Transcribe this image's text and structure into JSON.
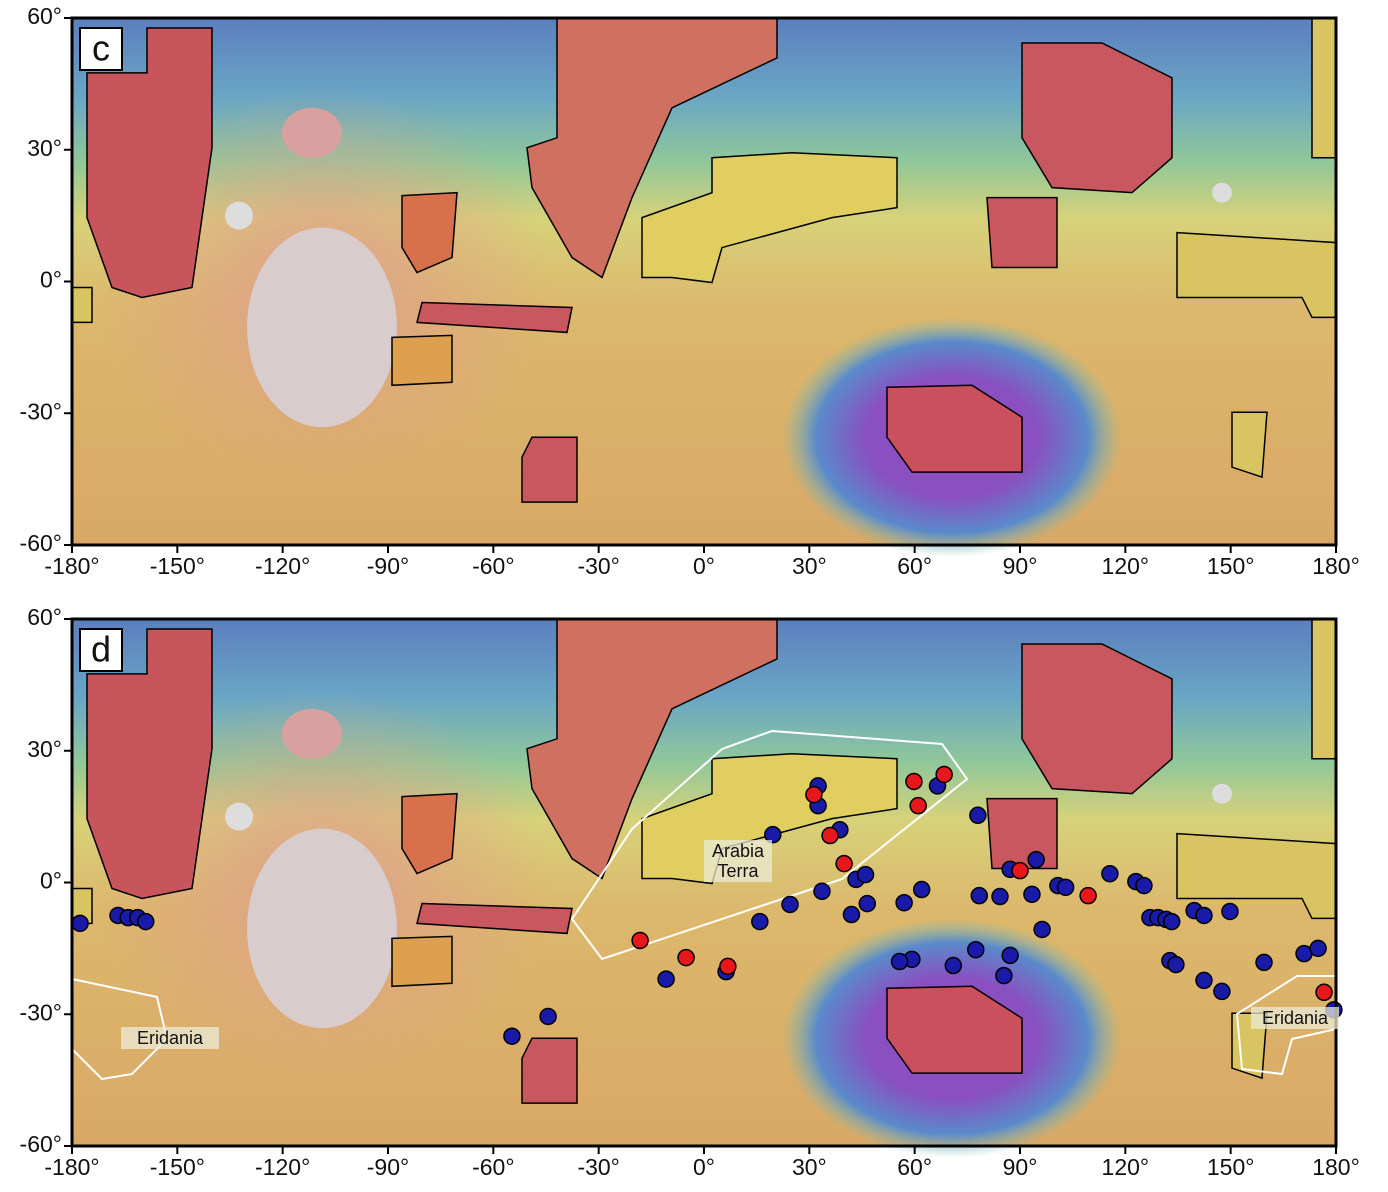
{
  "panels": [
    {
      "label": "c",
      "xlim": [
        -180,
        180
      ],
      "ylim": [
        -60,
        60
      ],
      "xticks": [
        {
          "value": -180,
          "label": "-180°"
        },
        {
          "value": -150,
          "label": "-150°"
        },
        {
          "value": -120,
          "label": "-120°"
        },
        {
          "value": -90,
          "label": "-90°"
        },
        {
          "value": -60,
          "label": "-60°"
        },
        {
          "value": -30,
          "label": "-30°"
        },
        {
          "value": 0,
          "label": "0°"
        },
        {
          "value": 30,
          "label": "30°"
        },
        {
          "value": 60,
          "label": "60°"
        },
        {
          "value": 90,
          "label": "90°"
        },
        {
          "value": 120,
          "label": "120°"
        },
        {
          "value": 150,
          "label": "150°"
        },
        {
          "value": 180,
          "label": "180°"
        }
      ],
      "yticks": [
        {
          "value": 60,
          "label": "60°"
        },
        {
          "value": 30,
          "label": "30°"
        },
        {
          "value": 0,
          "label": "0°"
        },
        {
          "value": -30,
          "label": "-30°"
        },
        {
          "value": -60,
          "label": "-60°"
        }
      ]
    },
    {
      "label": "d",
      "xlim": [
        -180,
        180
      ],
      "ylim": [
        -60,
        60
      ],
      "xticks": [
        {
          "value": -180,
          "label": "-180°"
        },
        {
          "value": -150,
          "label": "-150°"
        },
        {
          "value": -120,
          "label": "-120°"
        },
        {
          "value": -90,
          "label": "-90°"
        },
        {
          "value": -60,
          "label": "-60°"
        },
        {
          "value": -30,
          "label": "-30°"
        },
        {
          "value": 0,
          "label": "0°"
        },
        {
          "value": 30,
          "label": "30°"
        },
        {
          "value": 60,
          "label": "60°"
        },
        {
          "value": 90,
          "label": "90°"
        },
        {
          "value": 120,
          "label": "120°"
        },
        {
          "value": 150,
          "label": "150°"
        },
        {
          "value": 180,
          "label": "180°"
        }
      ],
      "yticks": [
        {
          "value": 60,
          "label": "60°"
        },
        {
          "value": 30,
          "label": "30°"
        },
        {
          "value": 0,
          "label": "0°"
        },
        {
          "value": -30,
          "label": "-30°"
        },
        {
          "value": -60,
          "label": "-60°"
        }
      ],
      "annotations": [
        "Arabia Terra",
        "Eridania",
        "Eridania"
      ],
      "series": [
        {
          "color": "#1a1aa8",
          "x": [
            -177.7,
            -166.9,
            -164,
            -161.3,
            -159,
            -54.7,
            -44.4,
            -10.8,
            6.3,
            15.9,
            19.6,
            24.5,
            32.5,
            32.5,
            33.6,
            38.7,
            42,
            43.3,
            46,
            46.5,
            57,
            59.2,
            55.7,
            62,
            66.5,
            71,
            78,
            78.4,
            77.4,
            84.3,
            85.4,
            87.2,
            87.2,
            93.4,
            94.6,
            96.3,
            100.8,
            103,
            115.6,
            123,
            125.3,
            127,
            129.3,
            131.6,
            133.2,
            132.7,
            134.4,
            139.6,
            142.4,
            142.4,
            147.5,
            149.8,
            159.5,
            170.9,
            174.9,
            179.4
          ],
          "y": [
            -9.3,
            -7.5,
            -8,
            -8,
            -8.9,
            -35,
            -30.5,
            -22,
            -20.3,
            -8.9,
            10.9,
            -5,
            22,
            17.5,
            -2,
            12,
            -7.3,
            0.7,
            1.8,
            -4.8,
            -4.6,
            -17.5,
            -18,
            -1.6,
            22,
            -18.9,
            15.3,
            -3,
            -15.3,
            -3.2,
            -21.2,
            3,
            -16.6,
            -2.7,
            5.2,
            -10.7,
            -0.7,
            -1.1,
            2,
            0.2,
            -0.7,
            -8,
            -8,
            -8.4,
            -8.9,
            -17.8,
            -18.7,
            -6.4,
            -7.5,
            -22.3,
            -24.8,
            -6.6,
            -18.2,
            -16.2,
            -15,
            -29
          ]
        },
        {
          "color": "#e8171b",
          "x": [
            -18.2,
            -5.1,
            6.8,
            31.3,
            35.9,
            39.9,
            59.8,
            61,
            68.4,
            90,
            109.4,
            176.6
          ],
          "y": [
            -13.2,
            -17.1,
            -19.1,
            20,
            10.7,
            4.3,
            23,
            17.5,
            24.6,
            2.7,
            -3,
            -25
          ]
        }
      ]
    }
  ]
}
